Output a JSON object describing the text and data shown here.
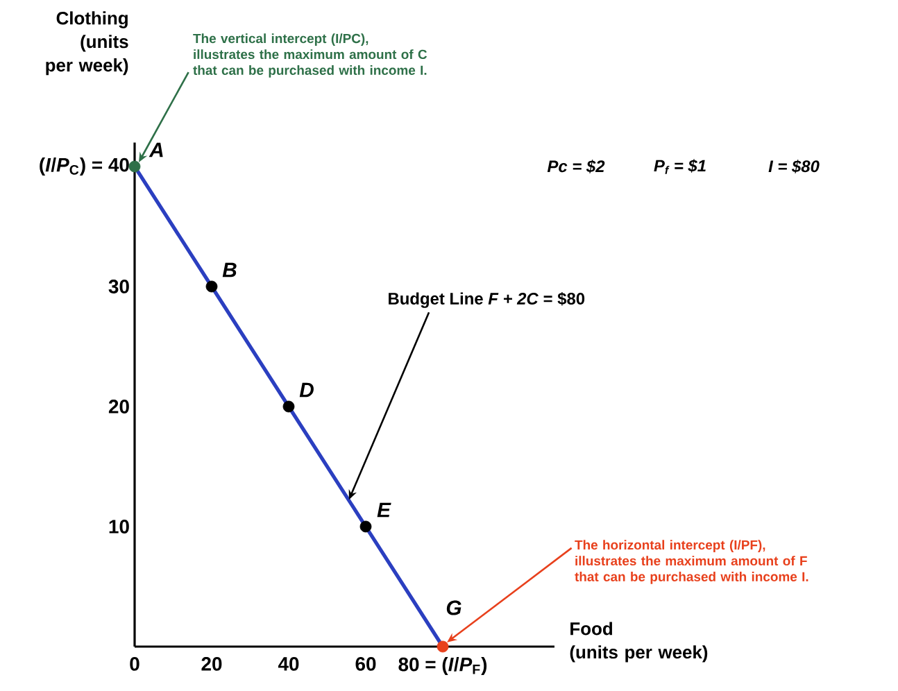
{
  "chart_data": {
    "type": "line",
    "xlabel": "Food (units per week)",
    "ylabel": "Clothing (units per week)",
    "series": [
      {
        "x": [
          0,
          20,
          40,
          60,
          80
        ],
        "values": [
          40,
          30,
          20,
          10,
          0
        ],
        "color": "#2b3fc0",
        "colors": [
          "#2e7048",
          "#000000",
          "#000000",
          "#000000",
          "#e8401c"
        ]
      }
    ],
    "marker": "circle",
    "line_style": "solid",
    "grid": false,
    "xlim": [
      0,
      109
    ],
    "ylim": [
      0,
      42
    ],
    "xticks": [
      0,
      20,
      40,
      60,
      {
        "value": 80,
        "label": "80 = (*I*/*P*$_{F}$)"
      }
    ],
    "yticks": [
      10,
      20,
      30,
      {
        "value": 40,
        "label": "(*I*/*P*$_{C}$) = 40"
      }
    ],
    "annotations": [
      {
        "text": "A",
        "x": 0,
        "y": 40
      },
      {
        "text": "B",
        "x": 20,
        "y": 30
      },
      {
        "text": "D",
        "x": 40,
        "y": 20
      },
      {
        "text": "E",
        "x": 60,
        "y": 10
      },
      {
        "text": "G",
        "x": 80,
        "y": 0
      },
      {
        "text": "The vertical intercept (I/PC), illustrates the maximum amount of C that can be purchased with income I.",
        "x": 0,
        "y": 40
      },
      {
        "text": "The horizontal intercept (I/PF), illustrates the maximum amount of F that can be purchased with income I.",
        "x": 80,
        "y": 0
      },
      {
        "text": "Budget Line *F + 2C* = $80",
        "x": 56,
        "y": 12
      },
      "Pc = $2",
      "P$_{f}$ = $1",
      "I = $80"
    ]
  }
}
